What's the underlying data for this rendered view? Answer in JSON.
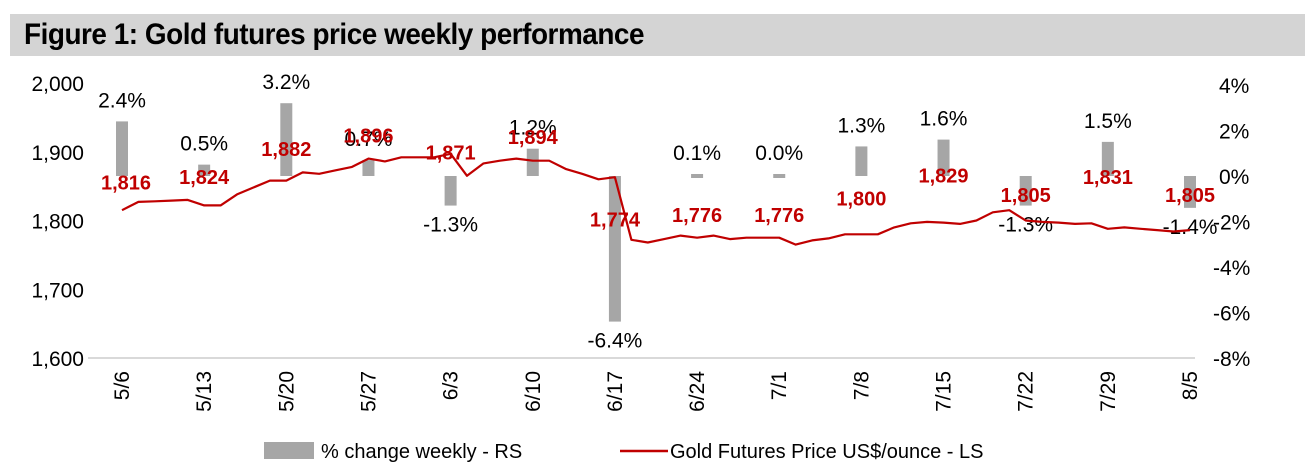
{
  "title": "Figure 1: Gold futures price weekly performance",
  "colors": {
    "bar": "#a6a6a6",
    "line": "#c00000",
    "price_label": "#c00000",
    "axis_line": "#d9d9d9",
    "title_bg": "#d4d4d4"
  },
  "chart_data": {
    "type": "bar+line",
    "title": "Figure 1: Gold futures price weekly performance",
    "categories": [
      "5/6",
      "5/13",
      "5/20",
      "5/27",
      "6/3",
      "6/10",
      "6/17",
      "6/24",
      "7/1",
      "7/8",
      "7/15",
      "7/22",
      "7/29",
      "8/5"
    ],
    "left_axis": {
      "label": "Gold Futures Price US$/ounce - LS",
      "range": [
        1600,
        2000
      ],
      "ticks": [
        "1,600",
        "1,700",
        "1,800",
        "1,900",
        "2,000"
      ],
      "tick_values": [
        1600,
        1700,
        1800,
        1900,
        2000
      ]
    },
    "right_axis": {
      "label": "% change weekly - RS",
      "range": [
        -8,
        4
      ],
      "ticks": [
        "-8%",
        "-6%",
        "-4%",
        "-2%",
        "0%",
        "2%",
        "4%"
      ],
      "tick_values": [
        -8,
        -6,
        -4,
        -2,
        0,
        2,
        4
      ]
    },
    "series": [
      {
        "name": "% change weekly - RS",
        "type": "bar",
        "axis": "right",
        "values": [
          2.4,
          0.5,
          3.2,
          0.7,
          -1.3,
          1.2,
          -6.4,
          0.1,
          0.0,
          1.3,
          1.6,
          -1.3,
          1.5,
          -1.4
        ],
        "labels": [
          "2.4%",
          "0.5%",
          "3.2%",
          "0.7%",
          "-1.3%",
          "1.2%",
          "-6.4%",
          "0.1%",
          "0.0%",
          "1.3%",
          "1.6%",
          "-1.3%",
          "1.5%",
          "-1.4%"
        ]
      },
      {
        "name": "Gold Futures Price US$/ounce - LS",
        "type": "line",
        "axis": "left",
        "weekly_labels": [
          "1,816",
          "1,824",
          "1,882",
          "1,896",
          "1,871",
          "1,894",
          "1,774",
          "1,776",
          "1,776",
          "1,800",
          "1,829",
          "1,805",
          "1,831",
          "1,805"
        ],
        "weekly_values": [
          1816,
          1824,
          1882,
          1896,
          1871,
          1894,
          1774,
          1776,
          1776,
          1800,
          1829,
          1805,
          1831,
          1805
        ],
        "daily_x": [
          0,
          0.2,
          0.4,
          0.6,
          0.8,
          1.0,
          1.2,
          1.4,
          1.6,
          1.8,
          2.0,
          2.2,
          2.4,
          2.6,
          2.8,
          3.0,
          3.2,
          3.4,
          3.6,
          3.8,
          4.0,
          4.2,
          4.4,
          4.6,
          4.8,
          5.0,
          5.2,
          5.4,
          5.6,
          5.8,
          6.0,
          6.2,
          6.4,
          6.6,
          6.8,
          7.0,
          7.2,
          7.4,
          7.6,
          7.8,
          8.0,
          8.2,
          8.4,
          8.6,
          8.8,
          9.0,
          9.2,
          9.4,
          9.6,
          9.8,
          10.0,
          10.2,
          10.4,
          10.6,
          10.8,
          11.0,
          11.2,
          11.4,
          11.6,
          11.8,
          12.0,
          12.2,
          12.4,
          12.6,
          12.8,
          13.0
        ],
        "daily_values": [
          1815,
          1827,
          1828,
          1829,
          1830,
          1822,
          1822,
          1838,
          1848,
          1858,
          1858,
          1870,
          1868,
          1873,
          1878,
          1890,
          1886,
          1892,
          1892,
          1892,
          1897,
          1865,
          1883,
          1887,
          1890,
          1887,
          1887,
          1875,
          1868,
          1860,
          1863,
          1772,
          1768,
          1773,
          1778,
          1775,
          1778,
          1773,
          1775,
          1775,
          1775,
          1765,
          1771,
          1774,
          1780,
          1780,
          1780,
          1790,
          1796,
          1798,
          1797,
          1795,
          1800,
          1812,
          1815,
          1800,
          1798,
          1797,
          1795,
          1796,
          1788,
          1790,
          1788,
          1786,
          1784,
          1786
        ],
        "daily_values_note": "approximate, read from line against left axis"
      }
    ],
    "legend": {
      "position": "bottom-center",
      "items": [
        {
          "label": "% change weekly - RS",
          "type": "bar"
        },
        {
          "label": "Gold Futures Price US$/ounce - LS",
          "type": "line"
        }
      ]
    },
    "grid": false
  }
}
